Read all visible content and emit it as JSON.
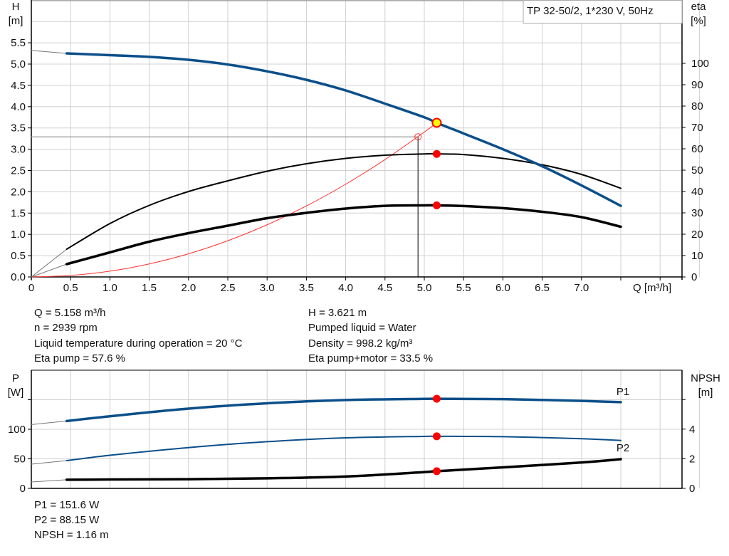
{
  "colors": {
    "head": "#0b4f8a",
    "eta": "#000000",
    "system": "#ff3030",
    "duty_point": "#ff0000",
    "duty_fill_head": "#ffff00",
    "grid": "#d0d0d0"
  },
  "chart_data": [
    {
      "type": "line",
      "legend": "TP 32-50/2, 1*230 V, 50Hz",
      "legend_placement": "top-right",
      "xlabel": "Q [m³/h]",
      "ylabel_left": [
        "H",
        "[m]"
      ],
      "ylabel_right": [
        "eta",
        "[%]"
      ],
      "xlim": [
        0,
        8.28
      ],
      "ylim_left": [
        0,
        6.5
      ],
      "ylim_right": [
        0,
        130
      ],
      "grid": true,
      "x_ticks": [
        "0",
        "0.5",
        "1.0",
        "1.5",
        "2.0",
        "2.5",
        "3.0",
        "3.5",
        "4.0",
        "4.5",
        "5.0",
        "5.5",
        "6.0",
        "6.5",
        "7.0"
      ],
      "y_ticks_left": [
        "0.0",
        "0.5",
        "1.0",
        "1.5",
        "2.0",
        "2.5",
        "3.0",
        "3.5",
        "4.0",
        "4.5",
        "5.0",
        "5.5"
      ],
      "y_ticks_right": [
        "0",
        "10",
        "20",
        "30",
        "40",
        "50",
        "60",
        "70",
        "80",
        "90",
        "100"
      ],
      "series": [
        {
          "key": "head",
          "axis": "left",
          "x": [
            0,
            0.45,
            1,
            1.5,
            2,
            2.5,
            3,
            3.5,
            4,
            4.5,
            5,
            5.158,
            5.5,
            6,
            6.5,
            7,
            7.5
          ],
          "y": [
            5.32,
            5.25,
            5.21,
            5.17,
            5.1,
            4.99,
            4.83,
            4.63,
            4.38,
            4.07,
            3.75,
            3.621,
            3.37,
            3.0,
            2.6,
            2.15,
            1.67
          ]
        },
        {
          "key": "eta_pump",
          "axis": "right",
          "x": [
            0,
            0.45,
            1,
            1.5,
            2,
            2.5,
            3,
            3.5,
            4,
            4.5,
            5,
            5.158,
            5.5,
            6,
            6.5,
            7,
            7.5
          ],
          "y": [
            0,
            13,
            25,
            33.5,
            40,
            45,
            49.5,
            53,
            55.5,
            57,
            57.6,
            57.6,
            57.3,
            55.5,
            52.5,
            48,
            41.5
          ]
        },
        {
          "key": "eta_total",
          "axis": "right",
          "x": [
            0,
            0.45,
            1,
            1.5,
            2,
            2.5,
            3,
            3.5,
            4,
            4.5,
            5,
            5.158,
            5.5,
            6,
            6.5,
            7,
            7.5
          ],
          "y": [
            0,
            6,
            11.5,
            16.5,
            20.5,
            24,
            27.5,
            30,
            32,
            33.3,
            33.5,
            33.5,
            33.2,
            32.2,
            30.5,
            28,
            23.5
          ]
        },
        {
          "key": "system",
          "axis": "left",
          "x": [
            0,
            0.5,
            1,
            1.5,
            2,
            2.5,
            3,
            3.5,
            4,
            4.5,
            5,
            5.158
          ],
          "y": [
            0,
            0.034,
            0.136,
            0.306,
            0.544,
            0.851,
            1.225,
            1.667,
            2.178,
            2.756,
            3.403,
            3.621
          ]
        }
      ],
      "duty_point": {
        "q": 5.158,
        "h": 3.621,
        "eta_pump": 57.6,
        "eta_total": 33.5
      },
      "requested_point": {
        "q": 4.92,
        "h": 3.29
      }
    },
    {
      "type": "line",
      "ylabel_left": [
        "P",
        "[W]"
      ],
      "ylabel_right": [
        "NPSH",
        "[m]"
      ],
      "xlim": [
        0,
        8.28
      ],
      "ylim_left": [
        0,
        200
      ],
      "ylim_right": [
        0,
        8
      ],
      "grid": true,
      "y_ticks_left": [
        "0",
        "50",
        "100"
      ],
      "y_ticks_right": [
        "0",
        "2",
        "4"
      ],
      "series": [
        {
          "key": "p1",
          "name": "P1",
          "axis": "left",
          "x": [
            0,
            0.45,
            1,
            2,
            3,
            4,
            5,
            5.158,
            6,
            7,
            7.5
          ],
          "y": [
            108,
            114,
            122,
            135,
            144,
            149.5,
            151.5,
            151.6,
            151,
            148,
            146
          ]
        },
        {
          "key": "p2",
          "name": "P2",
          "axis": "left",
          "x": [
            0,
            0.45,
            1,
            2,
            3,
            4,
            5,
            5.158,
            6,
            7,
            7.5
          ],
          "y": [
            41,
            47,
            56,
            69,
            79,
            85.5,
            88,
            88.15,
            87.5,
            84,
            81
          ]
        },
        {
          "key": "npsh",
          "axis": "right",
          "x": [
            0,
            0.45,
            1,
            2,
            3,
            4,
            5,
            5.158,
            6,
            7,
            7.5
          ],
          "y": [
            0.43,
            0.58,
            0.6,
            0.62,
            0.68,
            0.8,
            1.1,
            1.16,
            1.42,
            1.75,
            1.97
          ]
        }
      ],
      "duty_point": {
        "q": 5.158,
        "p1": 151.6,
        "p2": 88.15,
        "npsh": 1.16
      }
    }
  ],
  "results": {
    "q": "Q = 5.158 m³/h",
    "n": "n = 2939 rpm",
    "temp": "Liquid temperature during operation = 20 °C",
    "eta_pump": "Eta pump = 57.6 %",
    "h": "H = 3.621 m",
    "liquid": "Pumped liquid = Water",
    "density": "Density = 998.2 kg/m³",
    "eta_total": "Eta pump+motor = 33.5 %",
    "p1": "P1 = 151.6 W",
    "p2": "P2 = 88.15 W",
    "npsh": "NPSH = 1.16 m"
  }
}
